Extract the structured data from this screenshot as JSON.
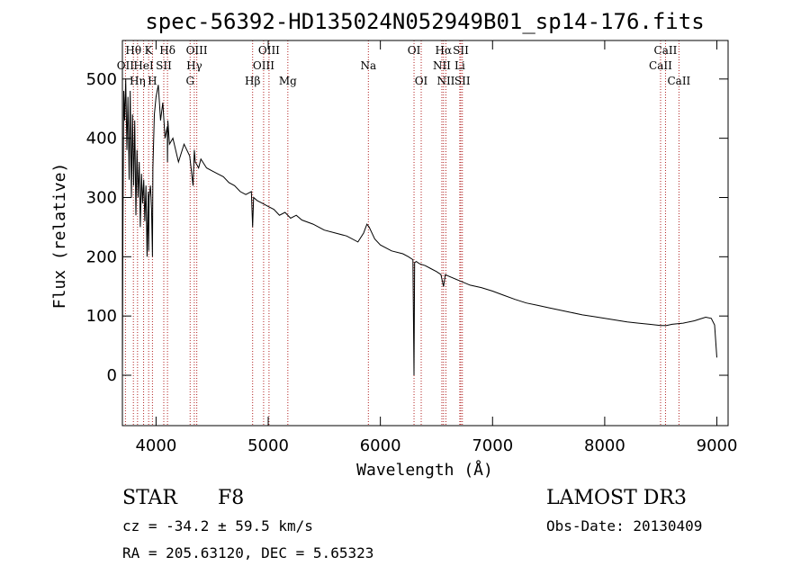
{
  "chart_data": {
    "type": "line",
    "title": "spec-56392-HD135024N052949B01_sp14-176.fits",
    "xlabel": "Wavelength (Å)",
    "ylabel": "Flux (relative)",
    "xlim": [
      3700,
      9100
    ],
    "ylim": [
      -85,
      565
    ],
    "x_ticks": [
      4000,
      5000,
      6000,
      7000,
      8000,
      9000
    ],
    "y_ticks": [
      0,
      100,
      200,
      300,
      400,
      500
    ],
    "grid": false,
    "series": [
      {
        "name": "spectrum",
        "x": [
          3700,
          3705,
          3712,
          3720,
          3730,
          3740,
          3750,
          3760,
          3770,
          3780,
          3790,
          3800,
          3810,
          3820,
          3830,
          3840,
          3850,
          3860,
          3870,
          3880,
          3890,
          3900,
          3910,
          3920,
          3930,
          3934,
          3938,
          3950,
          3960,
          3968,
          3972,
          3985,
          4000,
          4020,
          4040,
          4060,
          4080,
          4100,
          4102,
          4105,
          4120,
          4150,
          4200,
          4250,
          4300,
          4330,
          4341,
          4350,
          4380,
          4400,
          4450,
          4500,
          4550,
          4600,
          4650,
          4700,
          4750,
          4800,
          4850,
          4861,
          4870,
          4900,
          4950,
          5000,
          5050,
          5100,
          5150,
          5200,
          5250,
          5300,
          5400,
          5500,
          5600,
          5700,
          5800,
          5850,
          5880,
          5900,
          5950,
          6000,
          6100,
          6200,
          6250,
          6290,
          6300,
          6305,
          6320,
          6350,
          6400,
          6450,
          6500,
          6540,
          6563,
          6580,
          6600,
          6700,
          6800,
          6900,
          7000,
          7100,
          7200,
          7300,
          7400,
          7500,
          7600,
          7700,
          7800,
          7900,
          8000,
          8100,
          8200,
          8300,
          8400,
          8500,
          8550,
          8600,
          8700,
          8800,
          8850,
          8900,
          8950,
          8980,
          9000
        ],
        "y": [
          0,
          250,
          480,
          430,
          500,
          380,
          470,
          330,
          480,
          300,
          440,
          320,
          430,
          270,
          380,
          300,
          360,
          250,
          340,
          290,
          330,
          260,
          320,
          200,
          310,
          210,
          300,
          320,
          280,
          200,
          350,
          440,
          470,
          490,
          430,
          460,
          400,
          420,
          360,
          430,
          390,
          400,
          360,
          390,
          370,
          320,
          380,
          360,
          350,
          365,
          350,
          345,
          340,
          335,
          325,
          320,
          310,
          305,
          310,
          250,
          300,
          295,
          290,
          285,
          280,
          270,
          275,
          265,
          270,
          262,
          255,
          245,
          240,
          235,
          225,
          240,
          255,
          250,
          230,
          220,
          210,
          205,
          200,
          195,
          0,
          190,
          192,
          188,
          185,
          180,
          175,
          170,
          150,
          170,
          168,
          160,
          152,
          148,
          142,
          135,
          128,
          122,
          118,
          114,
          110,
          106,
          102,
          99,
          96,
          93,
          90,
          88,
          86,
          84,
          84,
          86,
          88,
          92,
          95,
          98,
          96,
          85,
          30
        ]
      }
    ],
    "lines": [
      {
        "label": "OII",
        "wl": 3727,
        "row": 2
      },
      {
        "label": "Hθ",
        "wl": 3798,
        "row": 1
      },
      {
        "label": "Hη",
        "wl": 3835,
        "row": 3
      },
      {
        "label": "HeI",
        "wl": 3889,
        "row": 2
      },
      {
        "label": "K",
        "wl": 3934,
        "row": 1
      },
      {
        "label": "H",
        "wl": 3968,
        "row": 3
      },
      {
        "label": "SII",
        "wl": 4069,
        "row": 2
      },
      {
        "label": "Hδ",
        "wl": 4102,
        "row": 1
      },
      {
        "label": "G",
        "wl": 4304,
        "row": 3
      },
      {
        "label": "Hγ",
        "wl": 4341,
        "row": 2
      },
      {
        "label": "OIII",
        "wl": 4363,
        "row": 1
      },
      {
        "label": "Hβ",
        "wl": 4861,
        "row": 3
      },
      {
        "label": "OIII",
        "wl": 4959,
        "row": 2
      },
      {
        "label": "OIII",
        "wl": 5007,
        "row": 1
      },
      {
        "label": "Mg",
        "wl": 5175,
        "row": 3
      },
      {
        "label": "Na",
        "wl": 5893,
        "row": 2
      },
      {
        "label": "OI",
        "wl": 6300,
        "row": 1
      },
      {
        "label": "OI",
        "wl": 6364,
        "row": 3
      },
      {
        "label": "NII",
        "wl": 6548,
        "row": 2
      },
      {
        "label": "Hα",
        "wl": 6563,
        "row": 1
      },
      {
        "label": "NII",
        "wl": 6584,
        "row": 3
      },
      {
        "label": "Li",
        "wl": 6708,
        "row": 2
      },
      {
        "label": "SII",
        "wl": 6717,
        "row": 1
      },
      {
        "label": "SII",
        "wl": 6731,
        "row": 3
      },
      {
        "label": "CaII",
        "wl": 8498,
        "row": 2
      },
      {
        "label": "CaII",
        "wl": 8542,
        "row": 1
      },
      {
        "label": "CaII",
        "wl": 8662,
        "row": 3
      }
    ],
    "line_color": "#b22222"
  },
  "info": {
    "class_label": "STAR",
    "subclass": "F8",
    "survey": "LAMOST DR3",
    "cz_line": "cz = -34.2 ± 59.5 km/s",
    "obs_date": "Obs-Date: 20130409",
    "radec_line": "RA = 205.63120, DEC =   5.65323"
  }
}
